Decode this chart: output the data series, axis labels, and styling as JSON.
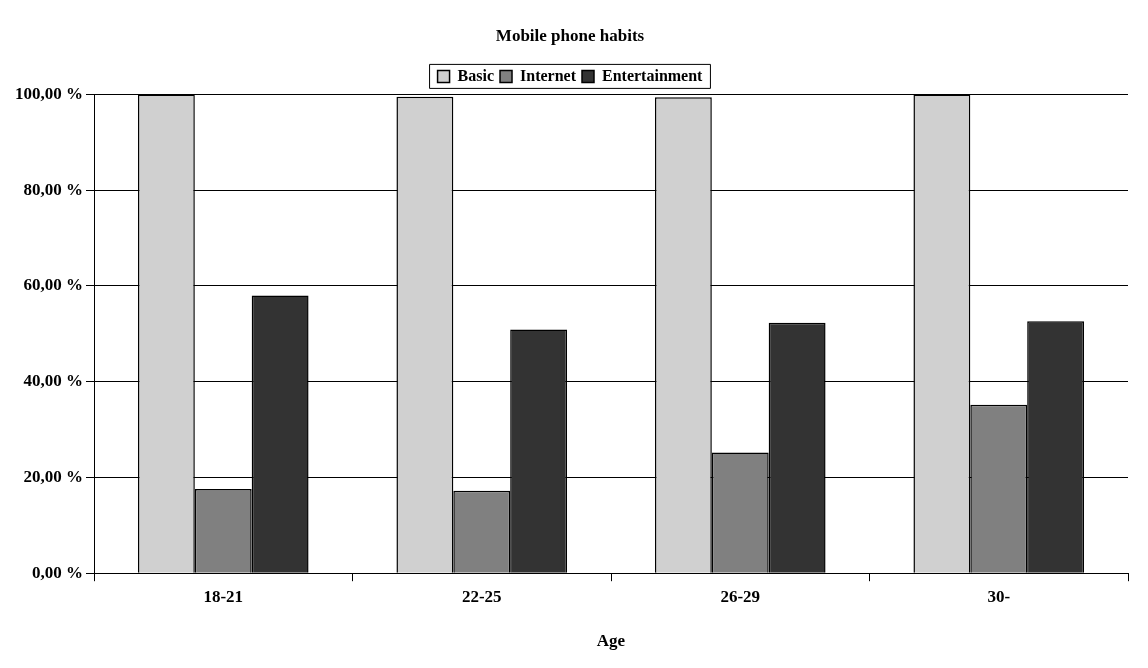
{
  "chart_data": {
    "type": "bar",
    "title": "Mobile phone habits",
    "xlabel": "Age",
    "categories": [
      "18-21",
      "22-25",
      "26-29",
      "30-"
    ],
    "series": [
      {
        "name": "Basic",
        "color": "#d0d0d0",
        "values": [
          100,
          99.5,
          99.4,
          100
        ]
      },
      {
        "name": "Internet",
        "color": "#808080",
        "values": [
          17.6,
          17.2,
          25.2,
          35.2
        ]
      },
      {
        "name": "Entertainment",
        "color": "#333333",
        "values": [
          58.0,
          50.9,
          52.3,
          52.6
        ]
      }
    ],
    "ylim": [
      0,
      100
    ],
    "yticks": [
      {
        "value": 0,
        "label": "0,00 %"
      },
      {
        "value": 20,
        "label": "20,00 %"
      },
      {
        "value": 40,
        "label": "40,00 %"
      },
      {
        "value": 60,
        "label": "60,00 %"
      },
      {
        "value": 80,
        "label": "80,00 %"
      },
      {
        "value": 100,
        "label": "100,00 %"
      }
    ],
    "grid": "y",
    "legend": "top"
  }
}
